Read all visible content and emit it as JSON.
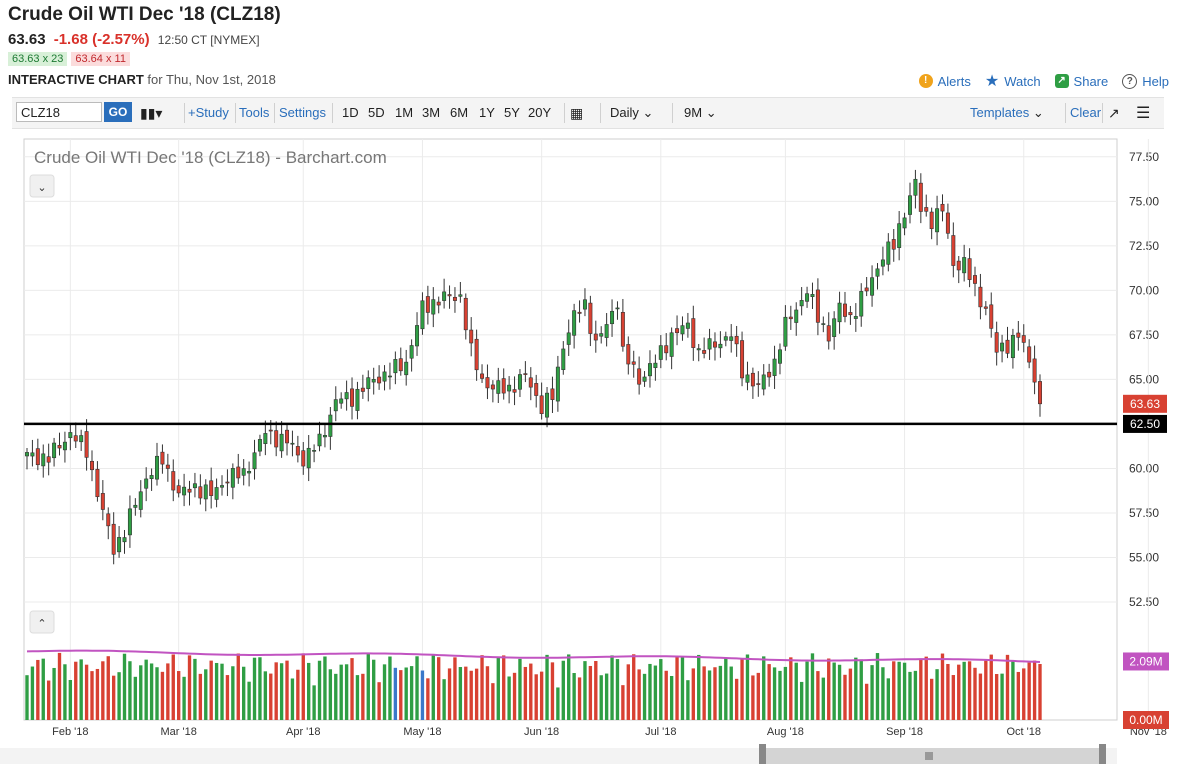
{
  "header": {
    "title": "Crude Oil WTI Dec '18 (CLZ18)",
    "last": "63.63",
    "change": "-1.68 (-2.57%)",
    "time": "12:50 CT [NYMEX]",
    "bid": "63.63 x 23",
    "ask": "63.64 x 11",
    "chart_label": "INTERACTIVE CHART",
    "chart_date": "for Thu, Nov 1st, 2018"
  },
  "top_actions": {
    "alerts": "Alerts",
    "watch": "Watch",
    "share": "Share",
    "help": "Help"
  },
  "toolbar": {
    "symbol": "CLZ18",
    "go": "GO",
    "study": "+Study",
    "tools": "Tools",
    "settings": "Settings",
    "ranges": [
      "1D",
      "5D",
      "1M",
      "3M",
      "6M",
      "1Y",
      "5Y",
      "20Y"
    ],
    "interval": "Daily",
    "period": "9M",
    "templates": "Templates",
    "clear": "Clear"
  },
  "colors": {
    "up": "#2f9e44",
    "down": "#d84132",
    "volume_avg": "#c154c1",
    "accent": "#2a6ebb",
    "vol_blue": "#3a78c9"
  },
  "chart_data": {
    "type": "candlestick",
    "title": "Crude Oil WTI Dec '18 (CLZ18) - Barchart.com",
    "ylim": [
      52.5,
      78.5
    ],
    "y_ticks": [
      52.5,
      55.0,
      57.5,
      60.0,
      62.5,
      65.0,
      67.5,
      70.0,
      72.5,
      75.0,
      77.5
    ],
    "y_tick_labels": [
      "52.50",
      "55.00",
      "57.50",
      "60.00",
      "62.50",
      "65.00",
      "67.50",
      "70.00",
      "72.50",
      "75.00",
      "77.50"
    ],
    "x_labels": [
      "Feb '18",
      "Mar '18",
      "Apr '18",
      "May '18",
      "Jun '18",
      "Jul '18",
      "Aug '18",
      "Sep '18",
      "Oct '18",
      "Nov '18"
    ],
    "x_label_index": [
      8,
      28,
      51,
      73,
      95,
      117,
      140,
      162,
      184,
      207
    ],
    "horizontal_line": {
      "value": 62.5,
      "label": "62.50"
    },
    "last_price": {
      "value": 63.63,
      "label": "63.63"
    },
    "close_anchors": [
      [
        0,
        60.7
      ],
      [
        4,
        60.6
      ],
      [
        8,
        62.0
      ],
      [
        11,
        61.0
      ],
      [
        14,
        57.5
      ],
      [
        16,
        55.5
      ],
      [
        18,
        56.5
      ],
      [
        22,
        59.5
      ],
      [
        25,
        60.5
      ],
      [
        28,
        58.5
      ],
      [
        31,
        59.0
      ],
      [
        34,
        58.5
      ],
      [
        37,
        59.5
      ],
      [
        40,
        59.7
      ],
      [
        44,
        62.0
      ],
      [
        48,
        61.5
      ],
      [
        51,
        60.5
      ],
      [
        54,
        61.5
      ],
      [
        57,
        63.8
      ],
      [
        60,
        64.0
      ],
      [
        64,
        65.0
      ],
      [
        67,
        65.4
      ],
      [
        70,
        66.0
      ],
      [
        73,
        69.0
      ],
      [
        76,
        69.5
      ],
      [
        80,
        69.7
      ],
      [
        82,
        66.5
      ],
      [
        84,
        65.0
      ],
      [
        86,
        64.5
      ],
      [
        89,
        64.5
      ],
      [
        92,
        65.2
      ],
      [
        95,
        63.5
      ],
      [
        97,
        64.0
      ],
      [
        99,
        67.0
      ],
      [
        101,
        68.5
      ],
      [
        103,
        69.2
      ],
      [
        105,
        67.0
      ],
      [
        107,
        68.0
      ],
      [
        109,
        69.5
      ],
      [
        110,
        66.5
      ],
      [
        113,
        65.0
      ],
      [
        116,
        66.0
      ],
      [
        119,
        67.5
      ],
      [
        122,
        68.0
      ],
      [
        124,
        66.5
      ],
      [
        127,
        67.0
      ],
      [
        130,
        67.5
      ],
      [
        132,
        65.5
      ],
      [
        135,
        64.5
      ],
      [
        138,
        66.0
      ],
      [
        140,
        68.0
      ],
      [
        142,
        69.0
      ],
      [
        144,
        70.0
      ],
      [
        146,
        68.5
      ],
      [
        148,
        67.5
      ],
      [
        150,
        69.0
      ],
      [
        152,
        68.5
      ],
      [
        155,
        70.0
      ],
      [
        158,
        72.0
      ],
      [
        160,
        72.5
      ],
      [
        162,
        74.5
      ],
      [
        164,
        76.0
      ],
      [
        165,
        74.5
      ],
      [
        167,
        74.0
      ],
      [
        169,
        74.5
      ],
      [
        171,
        71.5
      ],
      [
        173,
        71.5
      ],
      [
        175,
        70.0
      ],
      [
        177,
        69.0
      ],
      [
        179,
        66.5
      ],
      [
        181,
        67.0
      ],
      [
        183,
        67.5
      ],
      [
        185,
        66.0
      ],
      [
        186,
        65.2
      ],
      [
        187,
        63.63
      ]
    ],
    "volume": {
      "ylim": [
        0,
        4
      ],
      "tick_labels": [
        "0.00M"
      ],
      "current_label": "2.09M",
      "current_value": 2.09
    }
  }
}
